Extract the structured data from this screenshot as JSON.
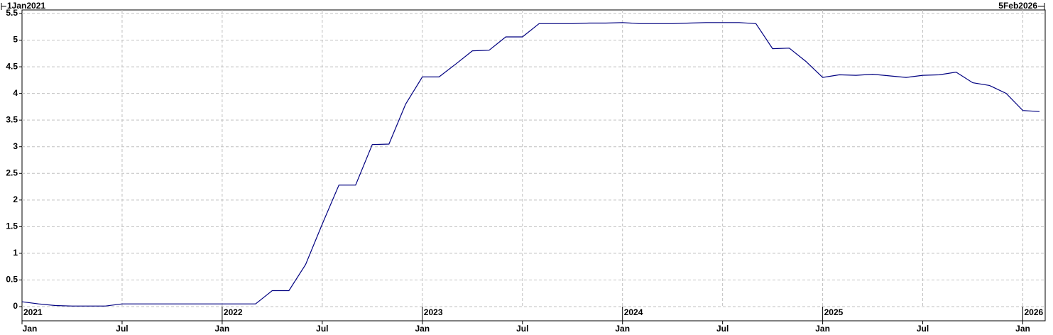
{
  "chart_data": {
    "type": "line",
    "range_labels": [
      "1Jan2021",
      "5Feb2026"
    ],
    "x": [
      "2021-01",
      "2021-02",
      "2021-03",
      "2021-04",
      "2021-05",
      "2021-06",
      "2021-07",
      "2021-08",
      "2021-09",
      "2021-10",
      "2021-11",
      "2021-12",
      "2022-01",
      "2022-02",
      "2022-03",
      "2022-04",
      "2022-05",
      "2022-06",
      "2022-07",
      "2022-08",
      "2022-09",
      "2022-10",
      "2022-11",
      "2022-12",
      "2023-01",
      "2023-02",
      "2023-03",
      "2023-04",
      "2023-05",
      "2023-06",
      "2023-07",
      "2023-08",
      "2023-09",
      "2023-10",
      "2023-11",
      "2023-12",
      "2024-01",
      "2024-02",
      "2024-03",
      "2024-04",
      "2024-05",
      "2024-06",
      "2024-07",
      "2024-08",
      "2024-09",
      "2024-10",
      "2024-11",
      "2024-12",
      "2025-01",
      "2025-02",
      "2025-03",
      "2025-04",
      "2025-05",
      "2025-06",
      "2025-07",
      "2025-08",
      "2025-09",
      "2025-10",
      "2025-11",
      "2025-12",
      "2026-01",
      "2026-02"
    ],
    "series": [
      {
        "color": "#000080",
        "values": [
          0.09,
          0.05,
          0.02,
          0.01,
          0.01,
          0.01,
          0.05,
          0.05,
          0.05,
          0.05,
          0.05,
          0.05,
          0.05,
          0.05,
          0.05,
          0.3,
          0.3,
          0.79,
          1.55,
          2.28,
          2.28,
          3.04,
          3.05,
          3.8,
          4.31,
          4.31,
          4.55,
          4.8,
          4.81,
          5.06,
          5.06,
          5.31,
          5.31,
          5.31,
          5.32,
          5.32,
          5.33,
          5.31,
          5.31,
          5.31,
          5.32,
          5.33,
          5.33,
          5.33,
          5.31,
          4.84,
          4.85,
          4.6,
          4.3,
          4.35,
          4.34,
          4.36,
          4.33,
          4.3,
          4.34,
          4.35,
          4.4,
          4.2,
          4.15,
          4.0,
          3.68,
          3.66
        ]
      }
    ],
    "xlim": [
      "2021-01",
      "2026-02"
    ],
    "xticks": [
      {
        "value": "2021-01",
        "label": "Jan"
      },
      {
        "value": "2021-07",
        "label": "Jul"
      },
      {
        "value": "2022-01",
        "label": "Jan"
      },
      {
        "value": "2022-07",
        "label": "Jul"
      },
      {
        "value": "2023-01",
        "label": "Jan"
      },
      {
        "value": "2023-07",
        "label": "Jul"
      },
      {
        "value": "2024-01",
        "label": "Jan"
      },
      {
        "value": "2024-07",
        "label": "Jul"
      },
      {
        "value": "2025-01",
        "label": "Jan"
      },
      {
        "value": "2025-07",
        "label": "Jul"
      },
      {
        "value": "2026-01",
        "label": "Jan"
      }
    ],
    "year_labels": [
      {
        "value": "2021-01",
        "label": "2021"
      },
      {
        "value": "2022-01",
        "label": "2022"
      },
      {
        "value": "2023-01",
        "label": "2023"
      },
      {
        "value": "2024-01",
        "label": "2024"
      },
      {
        "value": "2025-01",
        "label": "2025"
      },
      {
        "value": "2026-01",
        "label": "2026"
      }
    ],
    "ylim": [
      0,
      5.5
    ],
    "yticks": [
      0,
      0.5,
      1,
      1.5,
      2,
      2.5,
      3,
      3.5,
      4,
      4.5,
      5,
      5.5
    ],
    "grid": true
  }
}
